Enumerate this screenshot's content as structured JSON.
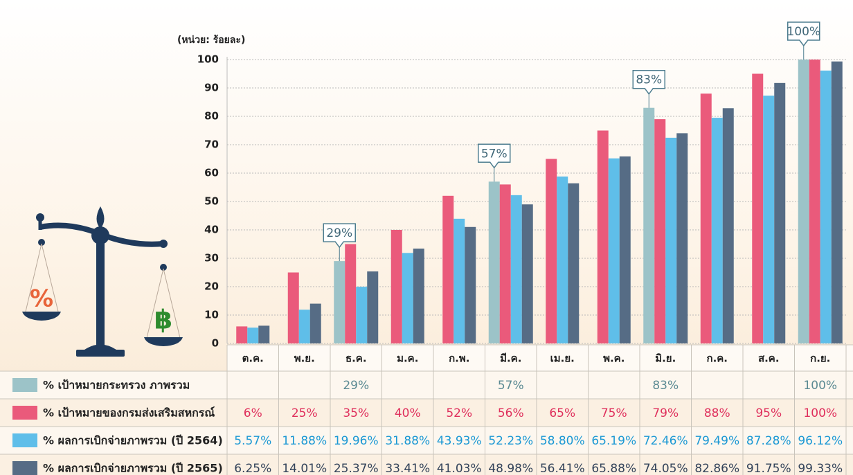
{
  "chart_data": {
    "type": "bar",
    "unit_label": "(หน่วย: ร้อยละ)",
    "categories": [
      "ต.ค.",
      "พ.ย.",
      "ธ.ค.",
      "ม.ค.",
      "ก.พ.",
      "มี.ค.",
      "เม.ย.",
      "พ.ค.",
      "มิ.ย.",
      "ก.ค.",
      "ส.ค.",
      "ก.ย."
    ],
    "series": [
      {
        "name": "% เป้าหมายกระทรวง ภาพรวม",
        "color": "#9cc3c8",
        "text_color": "#5b8a93",
        "values": [
          null,
          null,
          29,
          null,
          null,
          57,
          null,
          null,
          83,
          null,
          null,
          100
        ],
        "value_labels": [
          null,
          null,
          "29%",
          null,
          null,
          "57%",
          null,
          null,
          "83%",
          null,
          null,
          "100%"
        ]
      },
      {
        "name": "% เป้าหมายของกรมส่งเสริมสหกรณ์",
        "color": "#ea5a7b",
        "text_color": "#df2f5c",
        "values": [
          6,
          25,
          35,
          40,
          52,
          56,
          65,
          75,
          79,
          88,
          95,
          100
        ],
        "value_labels": [
          "6%",
          "25%",
          "35%",
          "40%",
          "52%",
          "56%",
          "65%",
          "75%",
          "79%",
          "88%",
          "95%",
          "100%"
        ]
      },
      {
        "name": "% ผลการเบิกจ่ายภาพรวม (ปี 2564)",
        "color": "#5fbee9",
        "text_color": "#1b98d4",
        "values": [
          5.57,
          11.88,
          19.96,
          31.88,
          43.93,
          52.23,
          58.8,
          65.19,
          72.46,
          79.49,
          87.28,
          96.12
        ],
        "value_labels": [
          "5.57%",
          "11.88%",
          "19.96%",
          "31.88%",
          "43.93%",
          "52.23%",
          "58.80%",
          "65.19%",
          "72.46%",
          "79.49%",
          "87.28%",
          "96.12%"
        ]
      },
      {
        "name": "% ผลการเบิกจ่ายภาพรวม (ปี 2565)",
        "color": "#566c85",
        "text_color": "#33435a",
        "values": [
          6.25,
          14.01,
          25.37,
          33.41,
          41.03,
          48.98,
          56.41,
          65.88,
          74.05,
          82.86,
          91.75,
          99.33
        ],
        "value_labels": [
          "6.25%",
          "14.01%",
          "25.37%",
          "33.41%",
          "41.03%",
          "48.98%",
          "56.41%",
          "65.88%",
          "74.05%",
          "82.86%",
          "91.75%",
          "99.33%"
        ]
      }
    ],
    "callout_series": 0,
    "ylim": [
      0,
      100
    ],
    "yticks": [
      0,
      10,
      20,
      30,
      40,
      50,
      60,
      70,
      80,
      90,
      100
    ],
    "grid": true
  },
  "illustration": {
    "left_pan": "%",
    "right_pan": "฿"
  }
}
